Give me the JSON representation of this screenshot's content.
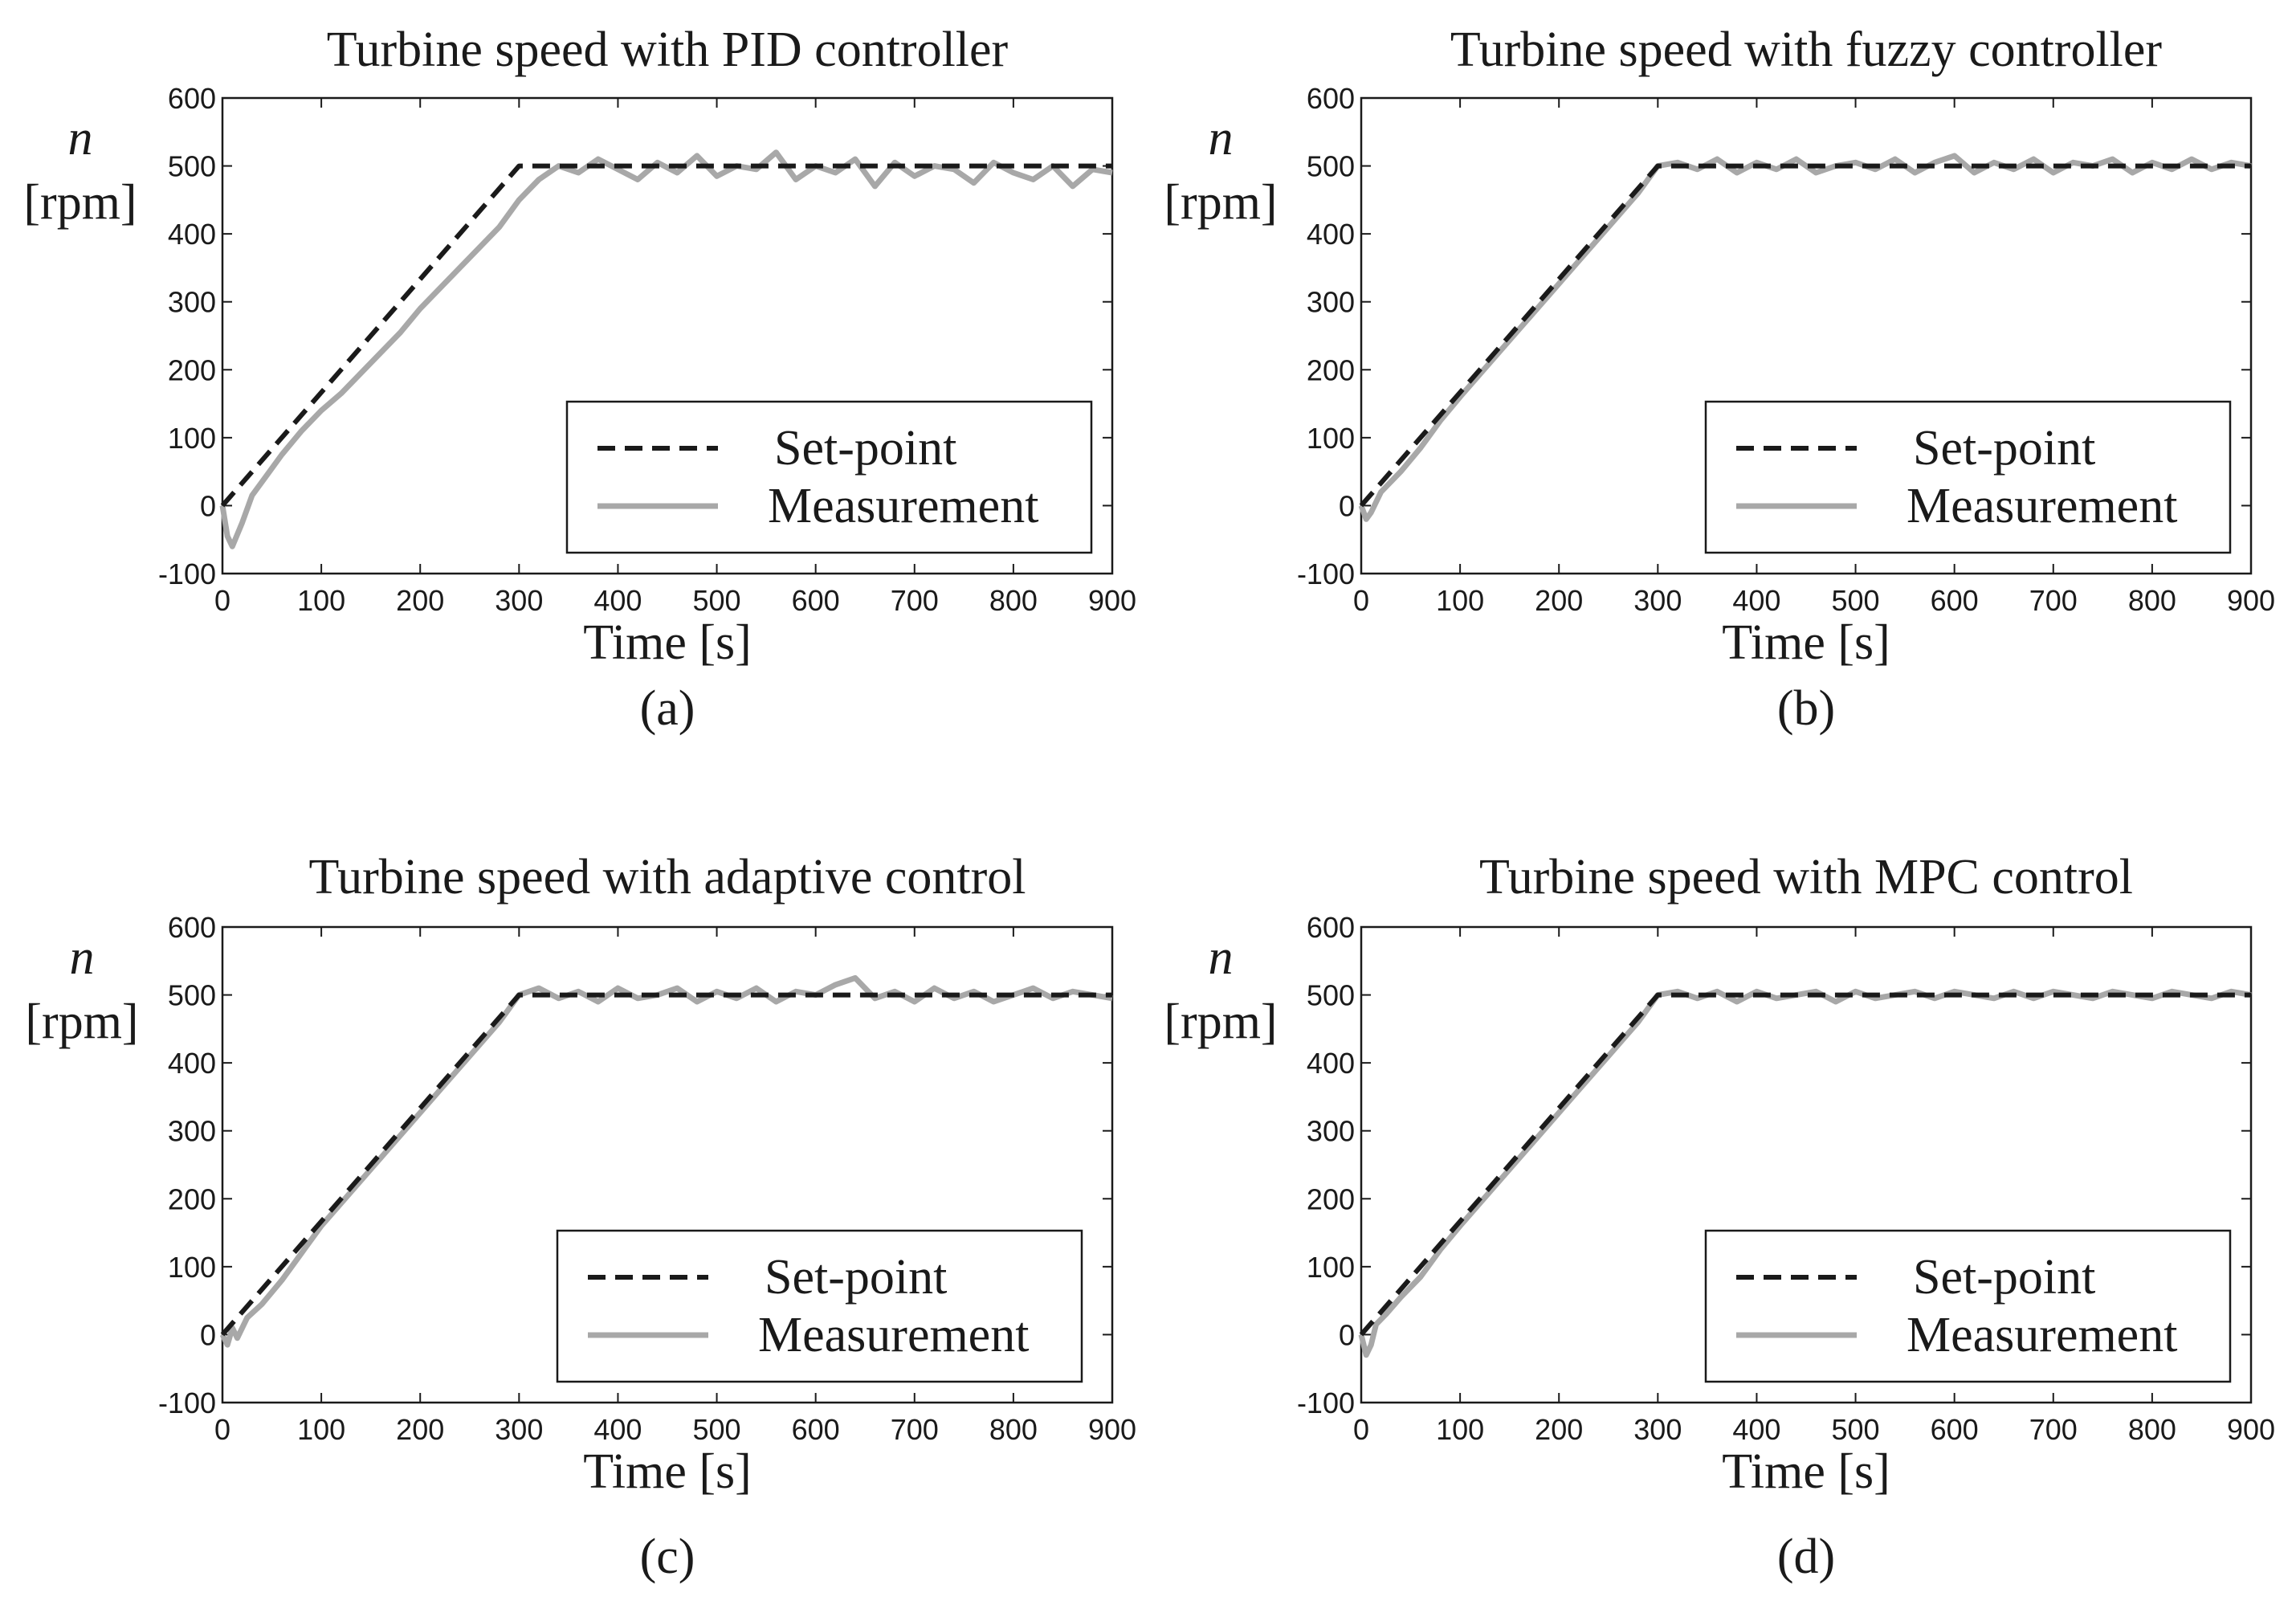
{
  "chart_data": [
    {
      "type": "line",
      "panel_label": "(a)",
      "title": "Turbine speed with PID controller",
      "xlabel": "Time [s]",
      "ylabel_symbol": "n",
      "ylabel_unit": "[rpm]",
      "xlim": [
        0,
        900
      ],
      "ylim": [
        -100,
        600
      ],
      "xticks": [
        0,
        100,
        200,
        300,
        400,
        500,
        600,
        700,
        800,
        900
      ],
      "yticks": [
        -100,
        0,
        100,
        200,
        300,
        400,
        500,
        600
      ],
      "grid": false,
      "legend_position": "bottom-right",
      "series": [
        {
          "name": "Set-point",
          "style": "dashed",
          "color": "#1a1a1a",
          "x": [
            0,
            300,
            900
          ],
          "y": [
            0,
            500,
            500
          ]
        },
        {
          "name": "Measurement",
          "style": "solid",
          "color": "#a8a8a8",
          "x": [
            0,
            5,
            10,
            20,
            30,
            45,
            60,
            80,
            100,
            120,
            150,
            180,
            200,
            220,
            250,
            280,
            300,
            320,
            340,
            360,
            380,
            400,
            420,
            440,
            460,
            480,
            500,
            520,
            540,
            560,
            580,
            600,
            620,
            640,
            660,
            680,
            700,
            720,
            740,
            760,
            780,
            800,
            820,
            840,
            860,
            880,
            900
          ],
          "y": [
            0,
            -45,
            -60,
            -25,
            15,
            45,
            75,
            110,
            140,
            165,
            210,
            255,
            290,
            320,
            365,
            410,
            450,
            480,
            500,
            490,
            510,
            495,
            480,
            505,
            490,
            515,
            485,
            500,
            495,
            520,
            480,
            500,
            490,
            510,
            470,
            505,
            485,
            500,
            495,
            475,
            505,
            490,
            480,
            500,
            470,
            495,
            490
          ]
        }
      ]
    },
    {
      "type": "line",
      "panel_label": "(b)",
      "title": "Turbine speed with fuzzy controller",
      "xlabel": "Time [s]",
      "ylabel_symbol": "n",
      "ylabel_unit": "[rpm]",
      "xlim": [
        0,
        900
      ],
      "ylim": [
        -100,
        600
      ],
      "xticks": [
        0,
        100,
        200,
        300,
        400,
        500,
        600,
        700,
        800,
        900
      ],
      "yticks": [
        -100,
        0,
        100,
        200,
        300,
        400,
        500,
        600
      ],
      "grid": false,
      "legend_position": "bottom-right",
      "series": [
        {
          "name": "Set-point",
          "style": "dashed",
          "color": "#1a1a1a",
          "x": [
            0,
            300,
            900
          ],
          "y": [
            0,
            500,
            500
          ]
        },
        {
          "name": "Measurement",
          "style": "solid",
          "color": "#a8a8a8",
          "x": [
            0,
            5,
            10,
            20,
            40,
            60,
            80,
            100,
            130,
            160,
            190,
            220,
            250,
            280,
            300,
            320,
            340,
            360,
            380,
            400,
            420,
            440,
            460,
            480,
            500,
            520,
            540,
            560,
            580,
            600,
            620,
            640,
            660,
            680,
            700,
            720,
            740,
            760,
            780,
            800,
            820,
            840,
            860,
            880,
            900
          ],
          "y": [
            0,
            -20,
            -10,
            20,
            50,
            85,
            125,
            160,
            210,
            260,
            310,
            360,
            410,
            460,
            500,
            505,
            495,
            510,
            490,
            505,
            495,
            510,
            490,
            500,
            505,
            495,
            510,
            490,
            505,
            515,
            490,
            505,
            495,
            510,
            490,
            505,
            500,
            510,
            490,
            505,
            495,
            510,
            495,
            505,
            500
          ]
        }
      ]
    },
    {
      "type": "line",
      "panel_label": "(c)",
      "title": "Turbine speed with adaptive control",
      "xlabel": "Time [s]",
      "ylabel_symbol": "n",
      "ylabel_unit": "[rpm]",
      "xlim": [
        0,
        900
      ],
      "ylim": [
        -100,
        600
      ],
      "xticks": [
        0,
        100,
        200,
        300,
        400,
        500,
        600,
        700,
        800,
        900
      ],
      "yticks": [
        -100,
        0,
        100,
        200,
        300,
        400,
        500,
        600
      ],
      "grid": false,
      "legend_position": "bottom-right",
      "series": [
        {
          "name": "Set-point",
          "style": "dashed",
          "color": "#1a1a1a",
          "x": [
            0,
            300,
            900
          ],
          "y": [
            0,
            500,
            500
          ]
        },
        {
          "name": "Measurement",
          "style": "solid",
          "color": "#a8a8a8",
          "x": [
            0,
            5,
            10,
            15,
            25,
            40,
            60,
            80,
            100,
            130,
            160,
            190,
            220,
            250,
            280,
            300,
            320,
            340,
            360,
            380,
            400,
            420,
            440,
            460,
            480,
            500,
            520,
            540,
            560,
            580,
            600,
            620,
            640,
            660,
            680,
            700,
            720,
            740,
            760,
            780,
            800,
            820,
            840,
            860,
            880,
            900
          ],
          "y": [
            0,
            -15,
            10,
            -5,
            25,
            45,
            80,
            120,
            160,
            210,
            260,
            310,
            360,
            410,
            460,
            500,
            510,
            495,
            505,
            490,
            510,
            495,
            500,
            510,
            490,
            505,
            495,
            510,
            490,
            505,
            500,
            515,
            525,
            495,
            505,
            490,
            510,
            495,
            505,
            490,
            500,
            510,
            495,
            505,
            500,
            495
          ]
        }
      ]
    },
    {
      "type": "line",
      "panel_label": "(d)",
      "title": "Turbine speed with MPC control",
      "xlabel": "Time [s]",
      "ylabel_symbol": "n",
      "ylabel_unit": "[rpm]",
      "xlim": [
        0,
        900
      ],
      "ylim": [
        -100,
        600
      ],
      "xticks": [
        0,
        100,
        200,
        300,
        400,
        500,
        600,
        700,
        800,
        900
      ],
      "yticks": [
        -100,
        0,
        100,
        200,
        300,
        400,
        500,
        600
      ],
      "grid": false,
      "legend_position": "bottom-right",
      "series": [
        {
          "name": "Set-point",
          "style": "dashed",
          "color": "#1a1a1a",
          "x": [
            0,
            300,
            900
          ],
          "y": [
            0,
            500,
            500
          ]
        },
        {
          "name": "Measurement",
          "style": "solid",
          "color": "#a8a8a8",
          "x": [
            0,
            5,
            10,
            15,
            25,
            40,
            60,
            80,
            100,
            130,
            160,
            190,
            220,
            250,
            280,
            300,
            320,
            340,
            360,
            380,
            400,
            420,
            440,
            460,
            480,
            500,
            520,
            540,
            560,
            580,
            600,
            620,
            640,
            660,
            680,
            700,
            720,
            740,
            760,
            780,
            800,
            820,
            840,
            860,
            880,
            900
          ],
          "y": [
            0,
            -30,
            -15,
            15,
            30,
            55,
            85,
            125,
            160,
            210,
            260,
            310,
            360,
            410,
            460,
            500,
            505,
            495,
            505,
            490,
            505,
            495,
            500,
            505,
            490,
            505,
            495,
            500,
            505,
            495,
            505,
            500,
            495,
            505,
            495,
            505,
            500,
            495,
            505,
            500,
            495,
            505,
            500,
            495,
            505,
            500
          ]
        }
      ]
    }
  ]
}
